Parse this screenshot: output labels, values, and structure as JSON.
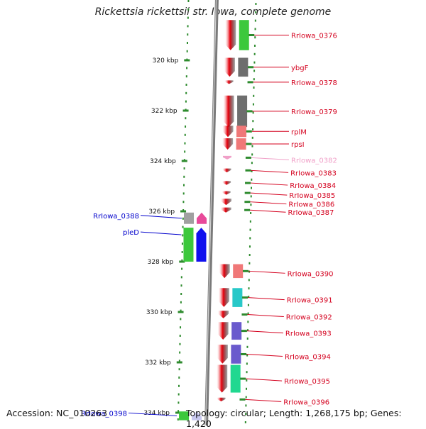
{
  "title": "Rickettsia rickettsii str. Iowa, complete genome",
  "footer": {
    "accession": "Accession: NC_010263",
    "stats": "Topology: circular; Length: 1,268,175 bp; Genes: 1,420"
  },
  "colors": {
    "backbone": "#7a7a7a",
    "ruler": "#2e8b2e",
    "gene_red": "#e8000c",
    "label_red": "#d4001e",
    "label_blue": "#0000cc",
    "label_pink": "#f0a0c8"
  },
  "ruler_ticks": [
    {
      "label": "320 kbp",
      "value": 320
    },
    {
      "label": "322 kbp",
      "value": 322
    },
    {
      "label": "324 kbp",
      "value": 324
    },
    {
      "label": "326 kbp",
      "value": 326
    },
    {
      "label": "328 kbp",
      "value": 328
    },
    {
      "label": "330 kbp",
      "value": 330
    },
    {
      "label": "332 kbp",
      "value": 332
    },
    {
      "label": "334 kbp",
      "value": 334
    }
  ],
  "genes_right": [
    {
      "name": "RrIowa_0376",
      "pos": 318.4,
      "len": 1.2,
      "cog": "#3cc83c"
    },
    {
      "name": "ybgF",
      "pos": 319.9,
      "len": 0.75,
      "cog": "#6e6e6e"
    },
    {
      "name": "RrIowa_0378",
      "pos": 320.8,
      "len": 0.0,
      "cog": ""
    },
    {
      "name": "RrIowa_0379",
      "pos": 321.4,
      "len": 1.25,
      "cog": "#6e6e6e"
    },
    {
      "name": "rplM",
      "pos": 322.6,
      "len": 0.45,
      "cog": "#f07878"
    },
    {
      "name": "rpsI",
      "pos": 323.1,
      "len": 0.45,
      "cog": "#f07878"
    },
    {
      "name": "RrIowa_0382",
      "pos": 323.8,
      "len": 0.1,
      "cog": "",
      "pseudo": true
    },
    {
      "name": "RrIowa_0383",
      "pos": 324.3,
      "len": 0.15,
      "cog": ""
    },
    {
      "name": "RrIowa_0384",
      "pos": 324.8,
      "len": 0.15,
      "cog": ""
    },
    {
      "name": "RrIowa_0385",
      "pos": 325.2,
      "len": 0.1,
      "cog": ""
    },
    {
      "name": "RrIowa_0386",
      "pos": 325.5,
      "len": 0.25,
      "cog": ""
    },
    {
      "name": "RrIowa_0387",
      "pos": 325.85,
      "len": 0.2,
      "cog": ""
    },
    {
      "name": "RrIowa_0390",
      "pos": 328.1,
      "len": 0.55,
      "cog": "#f07878"
    },
    {
      "name": "RrIowa_0391",
      "pos": 329.05,
      "len": 0.75,
      "cog": "#28c8c8"
    },
    {
      "name": "RrIowa_0392",
      "pos": 329.95,
      "len": 0.3,
      "cog": ""
    },
    {
      "name": "RrIowa_0393",
      "pos": 330.4,
      "len": 0.7,
      "cog": "#6a5acd"
    },
    {
      "name": "RrIowa_0394",
      "pos": 331.3,
      "len": 0.75,
      "cog": "#6a5acd"
    },
    {
      "name": "RrIowa_0395",
      "pos": 332.1,
      "len": 1.1,
      "cog": "#20d890"
    },
    {
      "name": "RrIowa_0396",
      "pos": 333.4,
      "len": 0.15,
      "cog": ""
    }
  ],
  "genes_left": [
    {
      "name": "RrIowa_0388",
      "pos": 326.05,
      "len": 0.45,
      "color": "#e84a9a",
      "cog": "#a0a0a0"
    },
    {
      "name": "pleD",
      "pos": 326.65,
      "len": 1.35,
      "color": "#1010ee",
      "cog": "#3cc83c"
    },
    {
      "name": "RrIowa_0398",
      "pos": 333.95,
      "len": 0.35,
      "color": "#c8c8f0",
      "cog": "#3cc83c"
    }
  ]
}
